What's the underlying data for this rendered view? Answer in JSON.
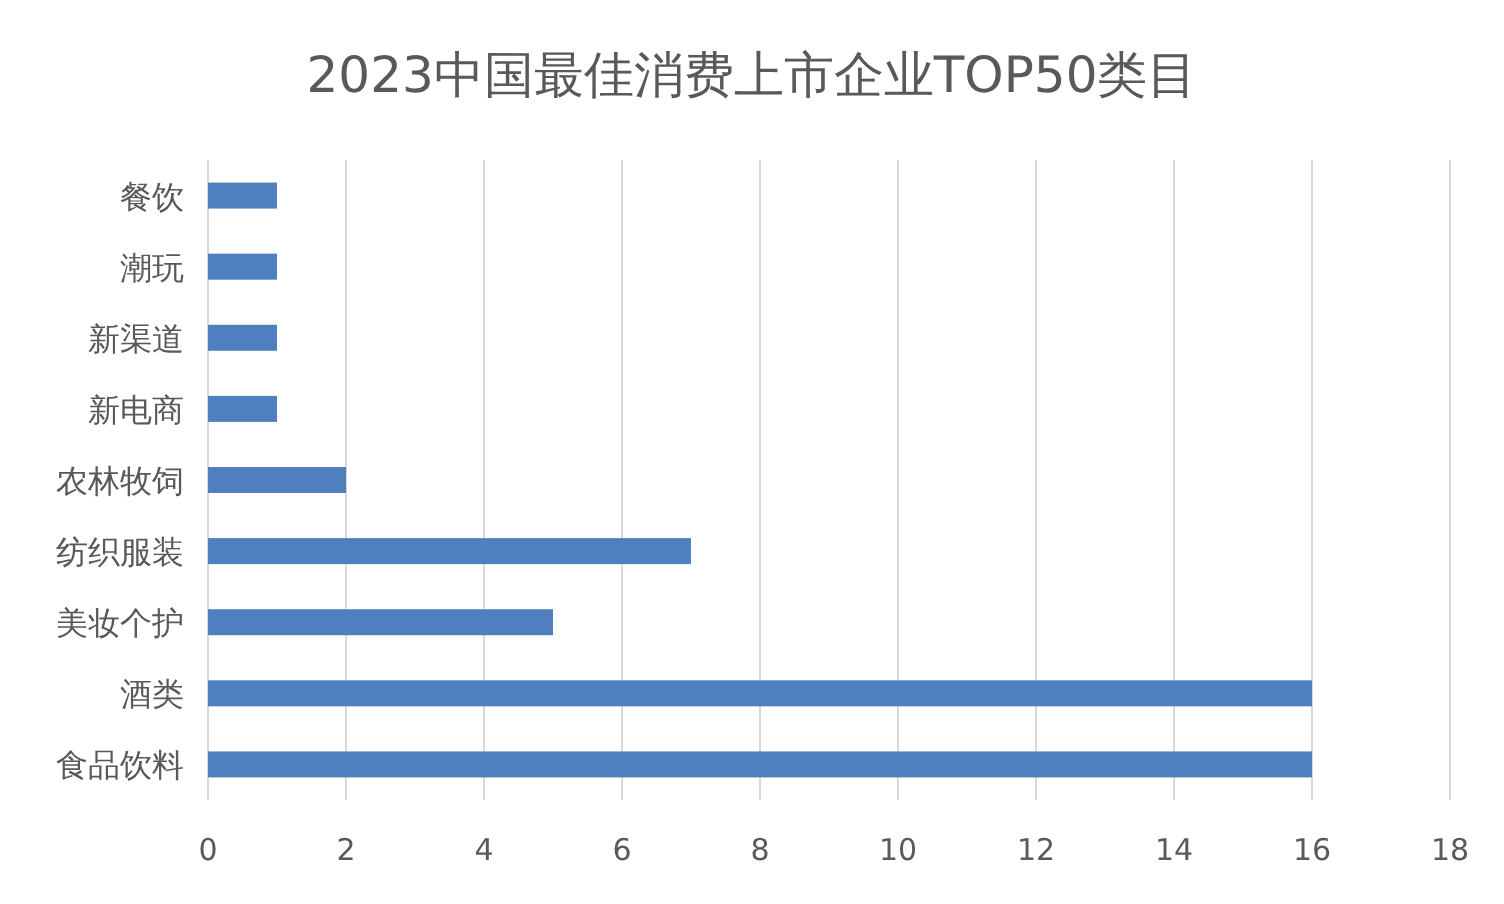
{
  "chart_data": {
    "type": "bar",
    "orientation": "horizontal",
    "title": "2023中国最佳消费上市企业TOP50类目",
    "categories": [
      "餐饮",
      "潮玩",
      "新渠道",
      "新电商",
      "农林牧饲",
      "纺织服装",
      "美妆个护",
      "酒类",
      "食品饮料"
    ],
    "values": [
      1,
      1,
      1,
      1,
      2,
      7,
      5,
      16,
      16
    ],
    "color": "#4f7fbf",
    "xlim": [
      0,
      18
    ],
    "xticks": [
      0,
      2,
      4,
      6,
      8,
      10,
      12,
      14,
      16,
      18
    ],
    "grid": "x"
  }
}
